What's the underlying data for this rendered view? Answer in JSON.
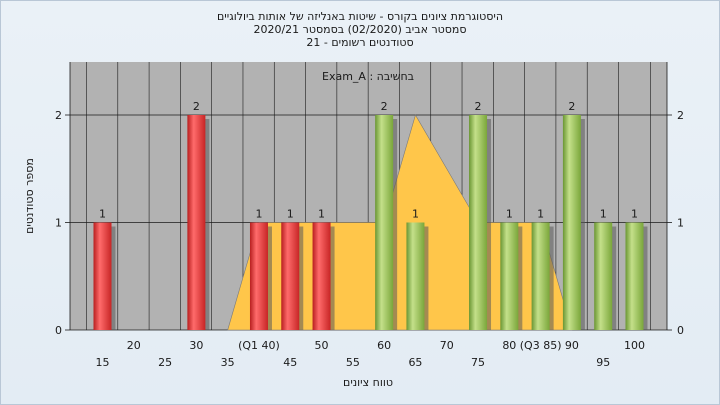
{
  "header": {
    "line1": "היסטוגרמת ציונים בקורס - שיטות באנליזה של אותות ביולוגיים",
    "line2": "2020/21  סמסטר אביב  (02/2020)  בסמסטר",
    "line3": "סטודנטים רשומים - 21"
  },
  "chart_data": {
    "type": "bar",
    "annotation": "Exam_A : בחשיבה",
    "xlabel": "טווח ציונים",
    "ylabel": "מספר סטודנטים",
    "ylim": [
      0,
      2.2
    ],
    "yticks": [
      0,
      1,
      2
    ],
    "x_ticks_row1": [
      "20",
      "30",
      "(Q1 40)",
      "50",
      "60",
      "70",
      "80",
      "(Q3 85)",
      "90",
      "100"
    ],
    "x_ticks_row2": [
      "15",
      "25",
      "35",
      "45",
      "55",
      "65",
      "75",
      "95"
    ],
    "bars": [
      {
        "x": 15,
        "value": 1,
        "color": "#e23b3b"
      },
      {
        "x": 30,
        "value": 2,
        "color": "#e23b3b"
      },
      {
        "x": 40,
        "value": 1,
        "color": "#e23b3b"
      },
      {
        "x": 45,
        "value": 1,
        "color": "#e23b3b"
      },
      {
        "x": 50,
        "value": 1,
        "color": "#e23b3b"
      },
      {
        "x": 60,
        "value": 2,
        "color": "#8fba48"
      },
      {
        "x": 65,
        "value": 1,
        "color": "#8fba48"
      },
      {
        "x": 75,
        "value": 2,
        "color": "#8fba48"
      },
      {
        "x": 80,
        "value": 1,
        "color": "#8fba48"
      },
      {
        "x": 85,
        "value": 1,
        "color": "#8fba48"
      },
      {
        "x": 90,
        "value": 2,
        "color": "#8fba48"
      },
      {
        "x": 95,
        "value": 1,
        "color": "#8fba48"
      },
      {
        "x": 100,
        "value": 1,
        "color": "#8fba48"
      }
    ],
    "area_series": [
      {
        "x": 35,
        "y": 0
      },
      {
        "x": 40,
        "y": 1
      },
      {
        "x": 45,
        "y": 1
      },
      {
        "x": 50,
        "y": 1
      },
      {
        "x": 55,
        "y": 1
      },
      {
        "x": 60,
        "y": 1
      },
      {
        "x": 65,
        "y": 2
      },
      {
        "x": 70,
        "y": 1.5
      },
      {
        "x": 75,
        "y": 1
      },
      {
        "x": 80,
        "y": 1
      },
      {
        "x": 85,
        "y": 1
      },
      {
        "x": 90,
        "y": 0
      }
    ],
    "colors": {
      "plot_bg": "#b2b2b2",
      "area": "#ffc64a",
      "grid": "#1a1a1a"
    }
  }
}
